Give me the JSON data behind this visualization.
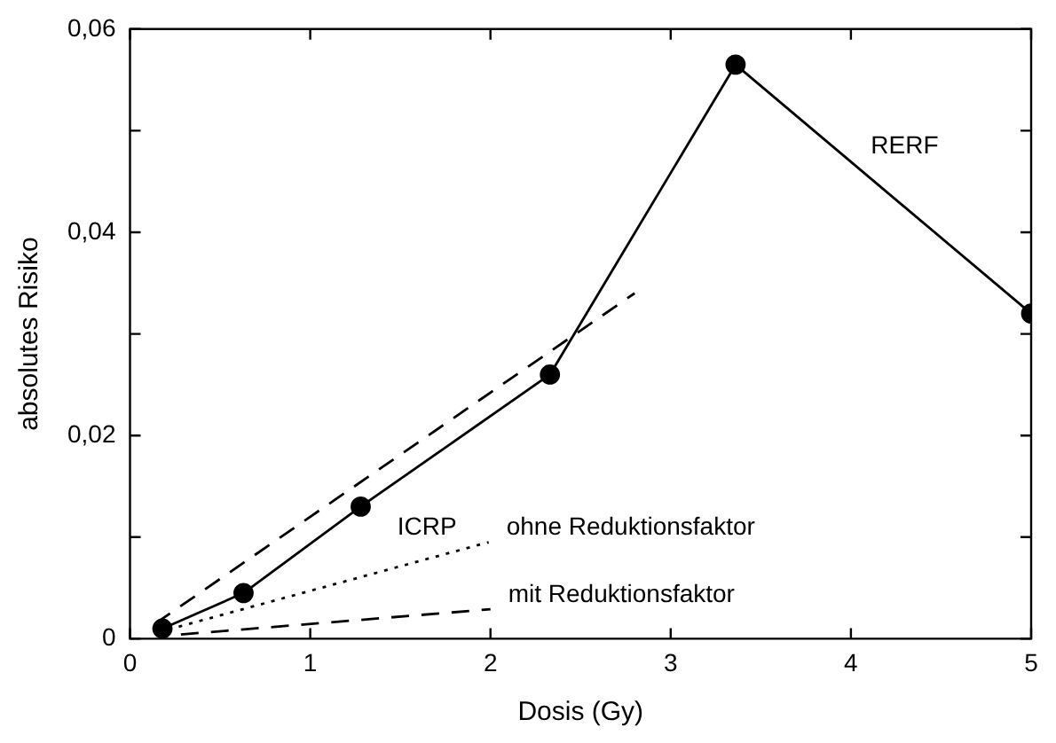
{
  "chart_data": {
    "type": "line",
    "xlabel": "Dosis (Gy)",
    "ylabel": "absolutes Risiko",
    "xlim": [
      0,
      5
    ],
    "xticks": [
      0,
      1,
      2,
      3,
      4,
      5
    ],
    "ylim": [
      0,
      0.06
    ],
    "yticks": [
      {
        "value": 0,
        "label": "0"
      },
      {
        "value": 0.01,
        "label": null
      },
      {
        "value": 0.02,
        "label": "0,02"
      },
      {
        "value": 0.03,
        "label": null
      },
      {
        "value": 0.04,
        "label": "0,04"
      },
      {
        "value": 0.05,
        "label": null
      },
      {
        "value": 0.06,
        "label": "0,06"
      }
    ],
    "grid": false,
    "annotations": [
      "ICRP"
    ],
    "series": [
      {
        "name": "RERF",
        "color": "#000000",
        "marker": "circle",
        "line_style": "solid",
        "x": [
          0.18,
          0.63,
          1.28,
          2.33,
          3.36,
          5.0
        ],
        "values": [
          0.001,
          0.0045,
          0.013,
          0.026,
          0.0565,
          0.032
        ]
      },
      {
        "color": "#000000",
        "marker": "none",
        "line_style": "dashed",
        "x": [
          0.1,
          2.8
        ],
        "values": [
          0.001,
          0.034
        ]
      },
      {
        "name": "ohne Reduktionsfaktor",
        "color": "#000000",
        "marker": "none",
        "line_style": "dotted",
        "x": [
          0.17,
          1.99
        ],
        "values": [
          0.0007,
          0.0095
        ]
      },
      {
        "name": "mit Reduktionsfaktor",
        "color": "#000000",
        "marker": "none",
        "line_style": "dashed",
        "x": [
          0.2,
          2.0
        ],
        "values": [
          0.0003,
          0.0029
        ]
      }
    ]
  }
}
